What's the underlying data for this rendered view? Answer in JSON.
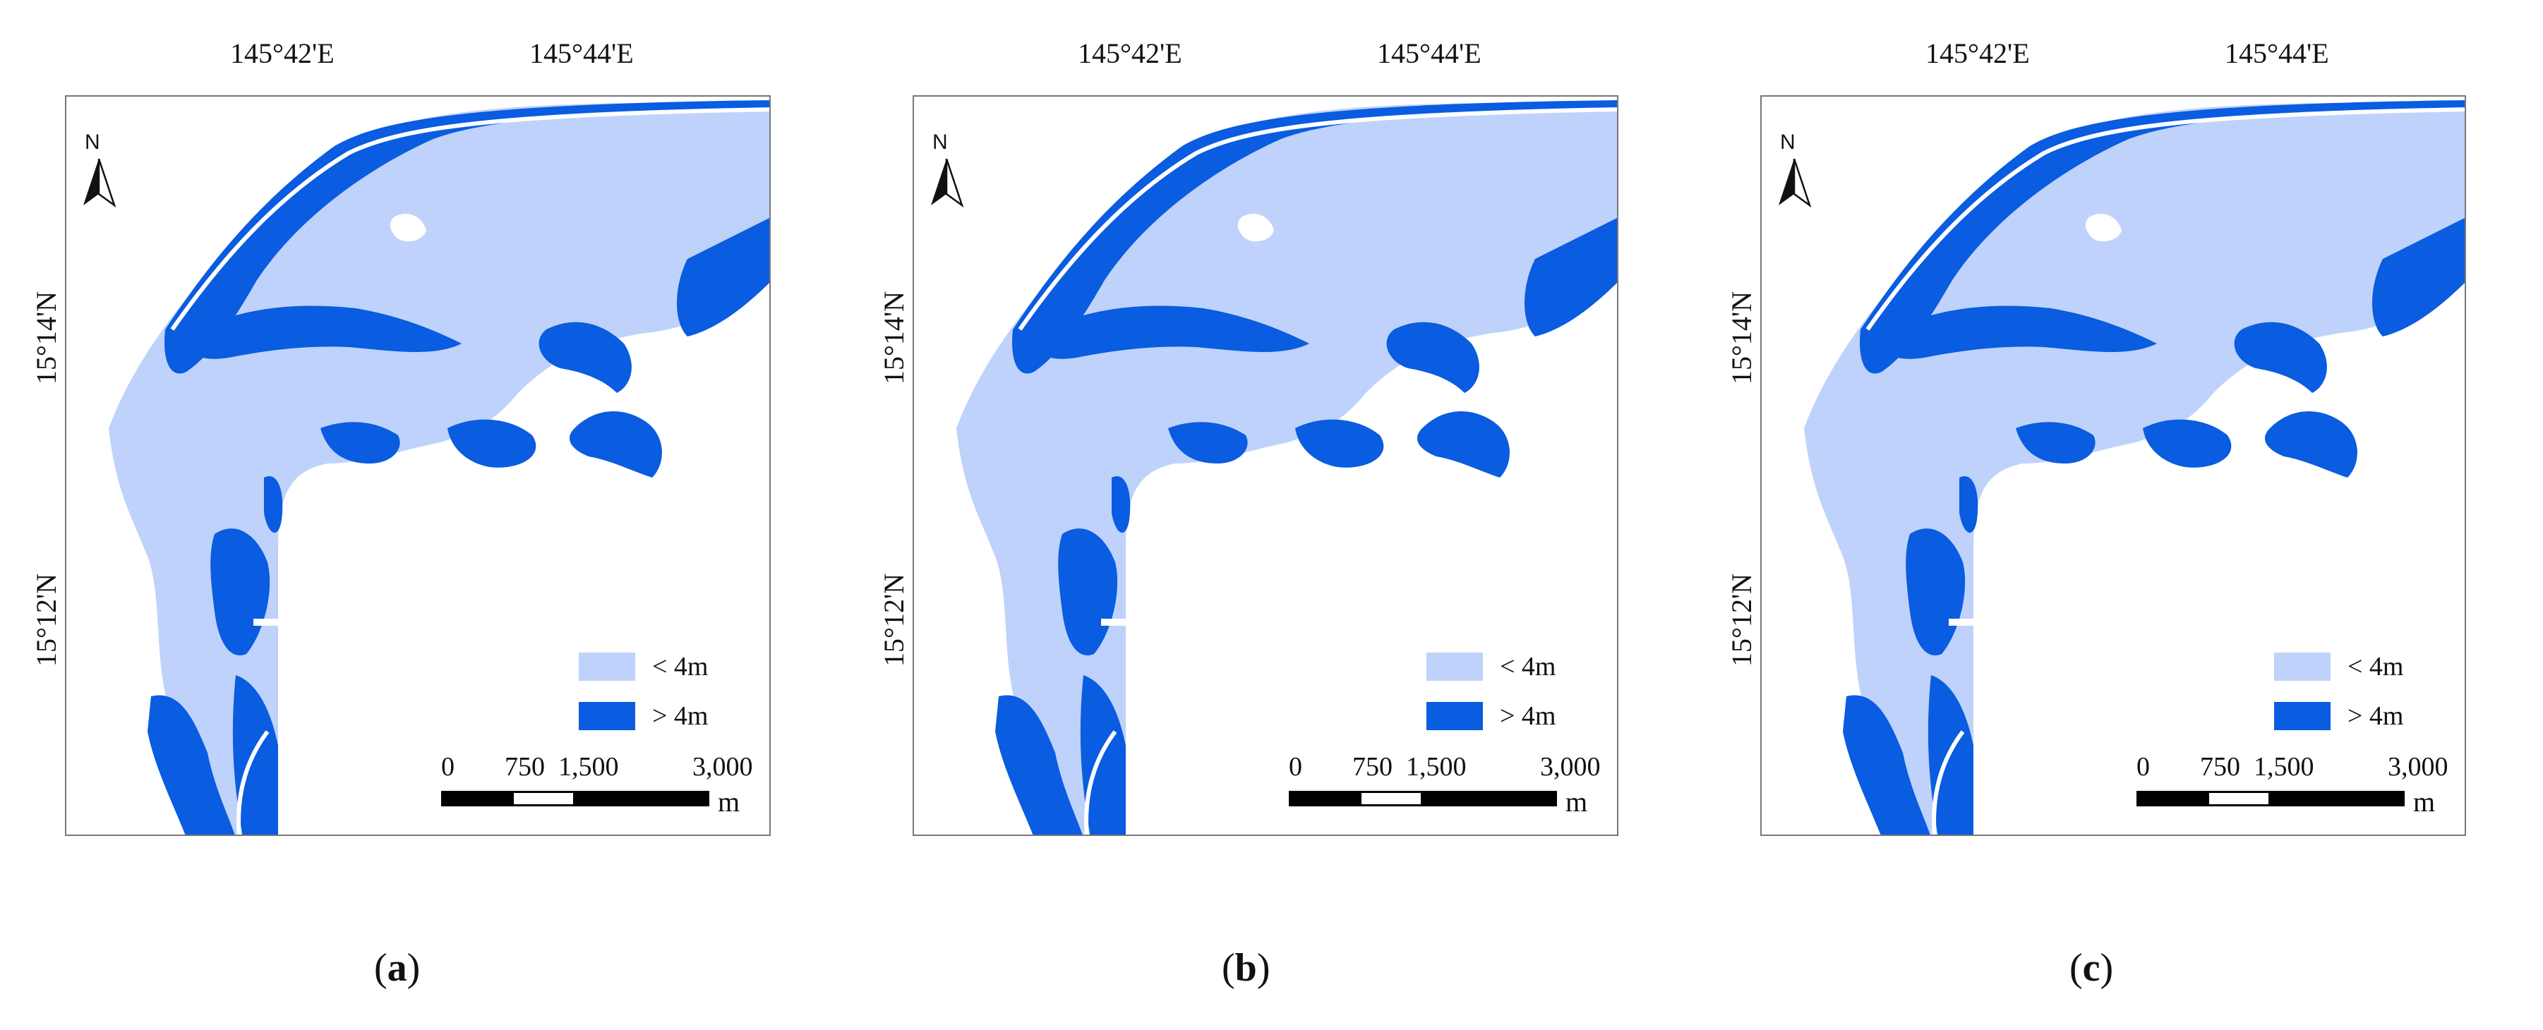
{
  "panels": [
    {
      "id": "a",
      "caption_open": "(",
      "caption_letter": "a",
      "caption_close": ")"
    },
    {
      "id": "b",
      "caption_open": "(",
      "caption_letter": "b",
      "caption_close": ")"
    },
    {
      "id": "c",
      "caption_open": "(",
      "caption_letter": "c",
      "caption_close": ")"
    }
  ],
  "graticule": {
    "lon_labels": [
      "145°42'E",
      "145°44'E"
    ],
    "lat_labels": [
      "15°14'N",
      "15°12'N"
    ]
  },
  "north_arrow": {
    "label": "N",
    "icon": "north-arrow-icon"
  },
  "legend": {
    "items": [
      {
        "label": "< 4m",
        "color": "#bfd2fb"
      },
      {
        "label": "> 4m",
        "color": "#0a5ce0"
      }
    ]
  },
  "scale_bar": {
    "ticks": [
      "0",
      "750",
      "1,500",
      "3,000"
    ],
    "unit": "m"
  },
  "colors": {
    "shallow": "#bfd2fb",
    "deep": "#0a5ce0",
    "frame": "#777777"
  }
}
